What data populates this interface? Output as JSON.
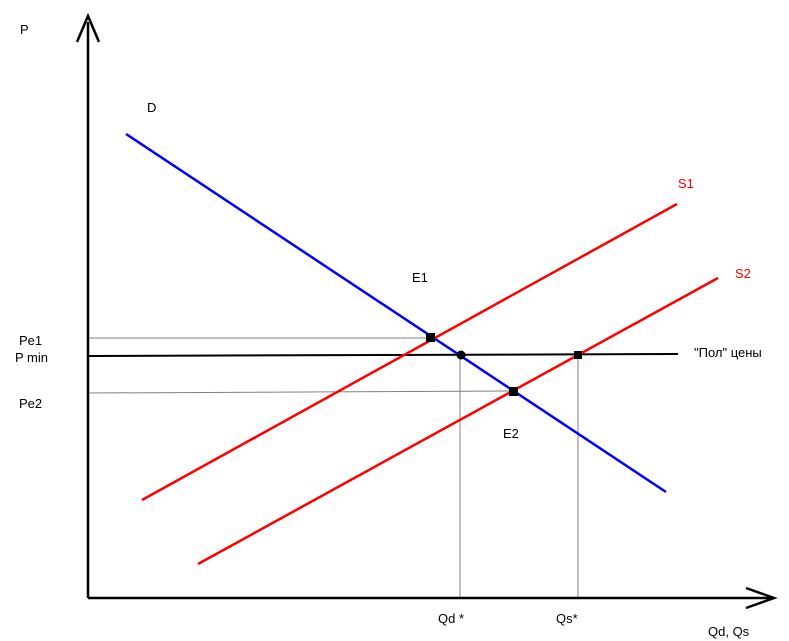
{
  "axes": {
    "y_label": "P",
    "x_label": "Qd, Qs"
  },
  "curves": {
    "demand": {
      "label": "D",
      "color": "#0000ff"
    },
    "supply1": {
      "label": "S1",
      "color": "#ff0000"
    },
    "supply2": {
      "label": "S2",
      "color": "#ff0000"
    },
    "price_floor": {
      "label": "\"Пол\" цены",
      "color": "#000000"
    }
  },
  "price_levels": {
    "pe1": "Pe1",
    "pmin": "P min",
    "pe2": "Pe2"
  },
  "quantity_levels": {
    "qd": "Qd *",
    "qs": "Qs*"
  },
  "equilibria": {
    "e1": "E1",
    "e2": "E2"
  }
}
